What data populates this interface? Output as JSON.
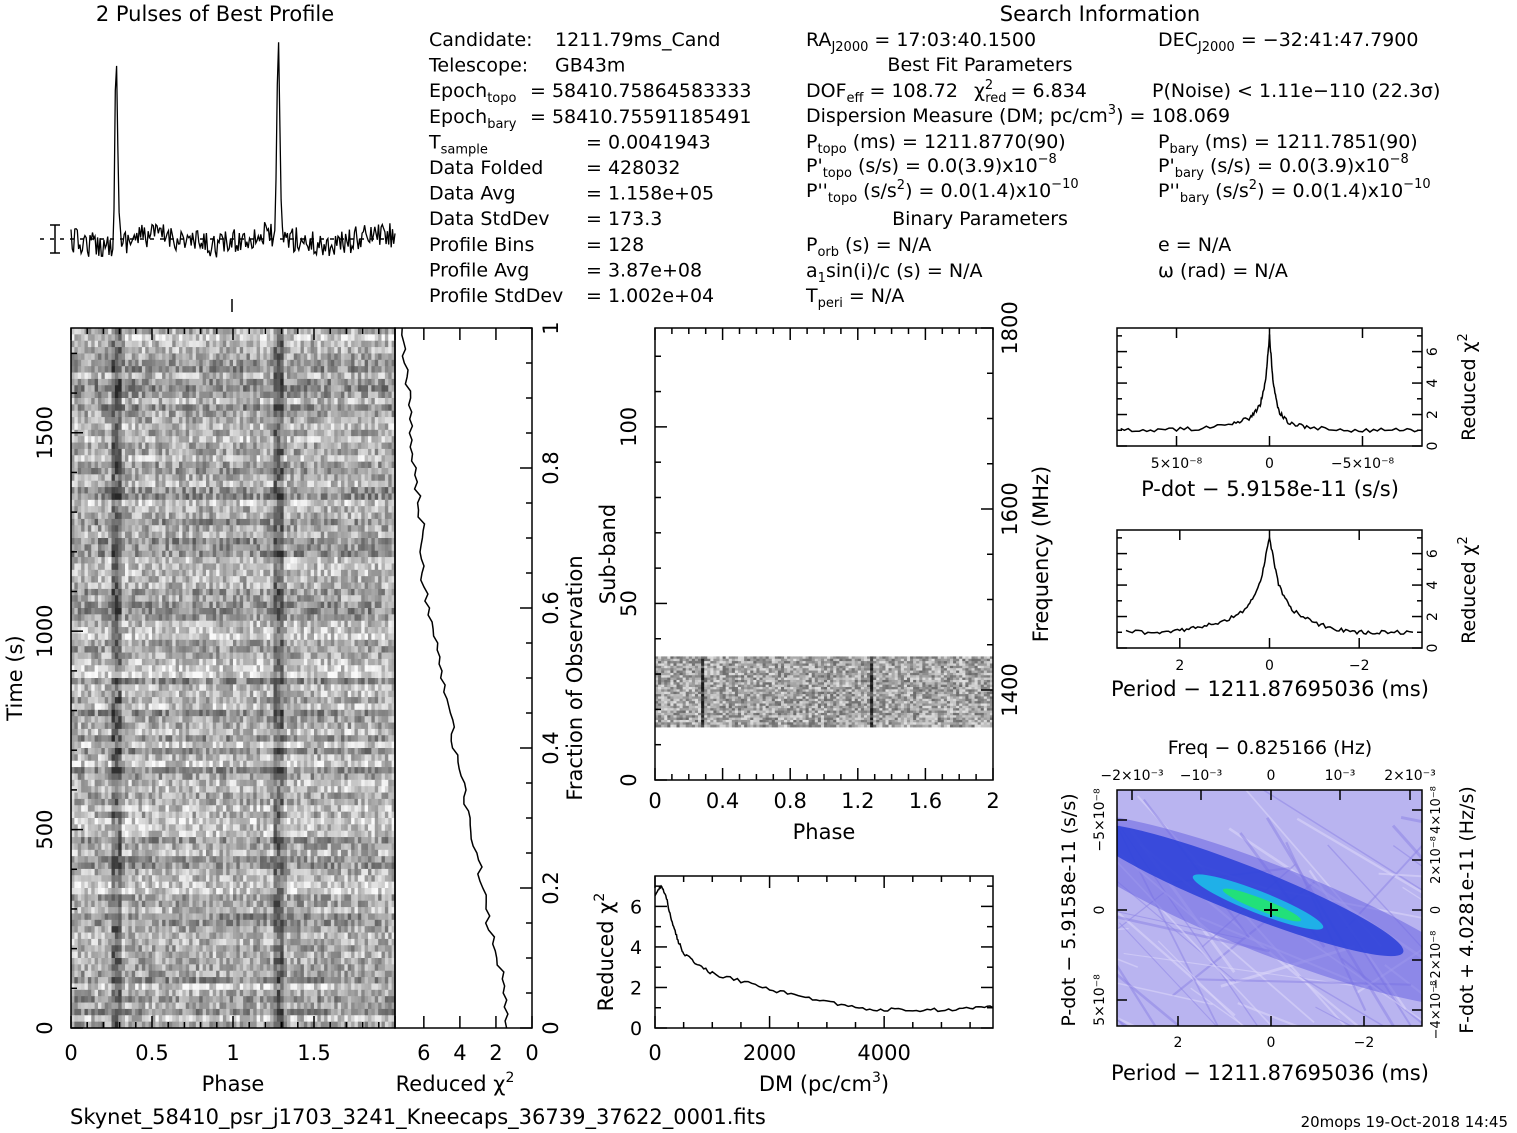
{
  "header": {
    "profile_title": "2 Pulses of Best Profile",
    "search_title": "Search Information",
    "best_fit_title": "Best Fit Parameters",
    "binary_title": "Binary Parameters",
    "footer_file": "Skynet_58410_psr_j1703_3241_Kneecaps_36739_37622_0001.fits",
    "footer_stamp": "20mops 19-Oct-2018 14:45"
  },
  "info_left": [
    {
      "label": "Candidate:",
      "value": "1211.79ms_Cand"
    },
    {
      "label": "Telescope:",
      "value": "GB43m"
    },
    {
      "label": "Epoch",
      "sub": "topo",
      "value": "= 58410.75864583333"
    },
    {
      "label": "Epoch",
      "sub": "bary",
      "value": "= 58410.75591185491"
    },
    {
      "label": "T",
      "sub": "sample",
      "value": "=   0.0041943"
    },
    {
      "label": "Data Folded",
      "value": "=   428032"
    },
    {
      "label": "Data Avg",
      "value": "=   1.158e+05"
    },
    {
      "label": "Data StdDev",
      "value": "=   173.3"
    },
    {
      "label": "Profile Bins",
      "value": "=   128"
    },
    {
      "label": "Profile Avg",
      "value": "=   3.87e+08"
    },
    {
      "label": "Profile StdDev",
      "value": "=   1.002e+04"
    }
  ],
  "info_mid": {
    "ra": "= 17:03:40.1500",
    "dec": "= −32:41:47.7900",
    "dof_value": "= 108.72",
    "chi_value": "= 6.834",
    "pnoise": "P(Noise) < 1.11e−110   (22.3σ)",
    "dm_line": "Dispersion Measure (DM; pc/cm",
    "dm_value": ") = 108.069",
    "ptopo": "(ms) =   1211.8770(90)",
    "pbary": "(ms) =   1211.7851(90)",
    "pdtopo": "(s/s) = 0.0(3.9)x10",
    "pdbary": "(s/s) = 0.0(3.9)x10",
    "pddtopo": "(s/s",
    "pddbary": "(s/s",
    "pdd_value": ") = 0.0(1.4)x10",
    "exp8": "−8",
    "exp10": "−10",
    "porb": "(s) = N/A",
    "ecc": "e = N/A",
    "a1": "sin(i)/c (s) = N/A",
    "omega": "(rad) = N/A",
    "tperi": "= N/A"
  },
  "labels": {
    "phase": "Phase",
    "time_s": "Time (s)",
    "reduced_chi": "Reduced χ",
    "fraction_obs": "Fraction of Observation",
    "sub_band": "Sub-band",
    "frequency": "Frequency (MHz)",
    "dm_axis": "DM (pc/cm",
    "pdot_axis": "P-dot − 5.9158e-11 (s/s)",
    "period_axis": "Period − 1211.87695036 (ms)",
    "freq_axis": "Freq − 0.825166 (Hz)",
    "pdot_vert": "P-dot − 5.9158e-11 (s/s)",
    "fdot_vert": "F-dot + 4.0281e-11 (Hz/s)"
  },
  "chart_data": [
    {
      "id": "pulse_profile",
      "type": "line",
      "title": "2 Pulses of Best Profile",
      "xlim": [
        0,
        2
      ],
      "peaks_phase": [
        0.28,
        1.28
      ],
      "note": "two sharp pulses above noisy baseline"
    },
    {
      "id": "time_phase",
      "type": "heatmap",
      "xlabel": "Phase",
      "ylabel": "Time (s)",
      "xlim": [
        0,
        2
      ],
      "ylim": [
        0,
        1764
      ],
      "xticks": [
        "0",
        "0.5",
        "1",
        "1.5"
      ],
      "yticks": [
        "0",
        "500",
        "1000",
        "1500"
      ],
      "y2label": "Fraction of Observation",
      "y2ticks": [
        "0",
        "0.2",
        "0.4",
        "0.6",
        "0.8",
        "1"
      ]
    },
    {
      "id": "time_chi2",
      "type": "line",
      "xlabel": "Reduced χ²",
      "xticks": [
        "6",
        "4",
        "2",
        "0"
      ],
      "x_reversed": true,
      "fraction": [
        0.0,
        0.05,
        0.1,
        0.15,
        0.2,
        0.25,
        0.3,
        0.35,
        0.4,
        0.45,
        0.5,
        0.55,
        0.6,
        0.65,
        0.7,
        0.75,
        0.8,
        0.85,
        0.9,
        0.95,
        1.0
      ],
      "chi2": [
        1.3,
        1.5,
        1.9,
        2.4,
        2.7,
        3.1,
        3.5,
        3.9,
        4.3,
        4.6,
        5.0,
        5.4,
        5.7,
        6.1,
        6.0,
        6.3,
        6.5,
        6.8,
        6.8,
        7.0,
        7.2
      ]
    },
    {
      "id": "subband_phase",
      "type": "heatmap",
      "xlabel": "Phase",
      "ylabel": "Sub-band",
      "xlim": [
        0,
        2
      ],
      "ylim": [
        0,
        128
      ],
      "xticks": [
        "0",
        "0.4",
        "0.8",
        "1.2",
        "1.6",
        "2"
      ],
      "yticks": [
        "0",
        "50",
        "100"
      ],
      "y2label": "Frequency (MHz)",
      "y2ticks": [
        "1400",
        "1600",
        "1800"
      ],
      "data_band": [
        15,
        35
      ],
      "pulse_phases": [
        0.28,
        1.28
      ]
    },
    {
      "id": "dm_chi2",
      "type": "line",
      "xlabel": "DM (pc/cm³)",
      "ylabel": "Reduced χ²",
      "xlim": [
        0,
        5900
      ],
      "ylim": [
        0,
        7.5
      ],
      "xticks": [
        "0",
        "2000",
        "4000"
      ],
      "yticks": [
        "0",
        "2",
        "4",
        "6"
      ],
      "x": [
        0,
        108,
        200,
        300,
        400,
        500,
        700,
        1000,
        1500,
        2000,
        2500,
        3000,
        3500,
        4000,
        4500,
        5000,
        5500,
        5900
      ],
      "y": [
        6.5,
        7.0,
        6.4,
        5.2,
        4.3,
        3.7,
        3.2,
        2.7,
        2.3,
        1.9,
        1.6,
        1.3,
        1.0,
        0.9,
        0.9,
        0.9,
        1.0,
        1.0
      ]
    },
    {
      "id": "pdot_chi2",
      "type": "line",
      "xlabel": "P-dot − 5.9158e-11 (s/s)",
      "ylabel": "Reduced χ²",
      "xticks": [
        "5×10⁻⁸",
        "0",
        "−5×10⁻⁸"
      ],
      "yticks": [
        "0",
        "2",
        "4",
        "6"
      ],
      "x_reversed": true,
      "x": [
        8,
        6,
        4,
        2,
        1,
        0.5,
        0.2,
        0,
        -0.2,
        -0.5,
        -1,
        -2,
        -4,
        -6,
        -8
      ],
      "y": [
        1.0,
        1.0,
        1.1,
        1.4,
        1.8,
        2.6,
        4.2,
        7.0,
        4.0,
        2.2,
        1.5,
        1.2,
        1.0,
        1.0,
        1.0
      ]
    },
    {
      "id": "period_chi2",
      "type": "line",
      "xlabel": "Period − 1211.87695036 (ms)",
      "ylabel": "Reduced χ²",
      "xticks": [
        "2",
        "0",
        "−2"
      ],
      "yticks": [
        "0",
        "2",
        "4",
        "6"
      ],
      "x_reversed": true,
      "x": [
        3.2,
        2.5,
        2,
        1.5,
        1,
        0.5,
        0.2,
        0,
        -0.2,
        -0.5,
        -1,
        -1.5,
        -2,
        -2.5,
        -3.2
      ],
      "y": [
        1.0,
        1.0,
        1.1,
        1.4,
        1.7,
        2.5,
        4.2,
        7.0,
        4.0,
        2.4,
        1.6,
        1.2,
        1.0,
        1.0,
        1.0
      ]
    },
    {
      "id": "p_pdot_plane",
      "type": "heatmap",
      "xlabel": "Period − 1211.87695036 (ms)",
      "ylabel": "P-dot − 5.9158e-11 (s/s)",
      "x2label": "Freq − 0.825166 (Hz)",
      "y2label": "F-dot + 4.0281e-11 (Hz/s)",
      "xticks": [
        "2",
        "0",
        "−2"
      ],
      "yticks": [
        "5×10⁻⁸",
        "0",
        "−5×10⁻⁸"
      ],
      "x2ticks": [
        "−2×10⁻³",
        "−10⁻³",
        "0",
        "10⁻³",
        "2×10⁻³"
      ],
      "y2ticks": [
        "−4×10⁻⁸",
        "−2×10⁻⁸",
        "0",
        "2×10⁻⁸",
        "4×10⁻⁸"
      ],
      "colors": {
        "background": "#b9b4f0",
        "ridge": "#2a3fd8",
        "peak": "#22e07a"
      }
    }
  ]
}
